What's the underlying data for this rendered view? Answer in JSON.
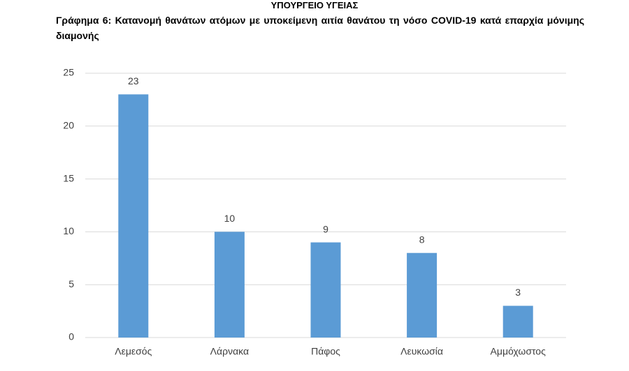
{
  "chart_data": {
    "type": "bar",
    "header": "ΥΠΟΥΡΓΕΙΟ ΥΓΕΙΑΣ",
    "title": "Γράφημα 6: Κατανομή θανάτων ατόμων με υποκείμενη αιτία θανάτου τη νόσο COVID-19 κατά επαρχία μόνιμης διαμονής",
    "categories": [
      "Λεμεσός",
      "Λάρνακα",
      "Πάφος",
      "Λευκωσία",
      "Αμμόχωστος"
    ],
    "values": [
      23,
      10,
      9,
      8,
      3
    ],
    "color": "#5b9bd5",
    "ylim": [
      0,
      25
    ],
    "yticks": [
      0,
      5,
      10,
      15,
      20,
      25
    ],
    "grid": true
  }
}
